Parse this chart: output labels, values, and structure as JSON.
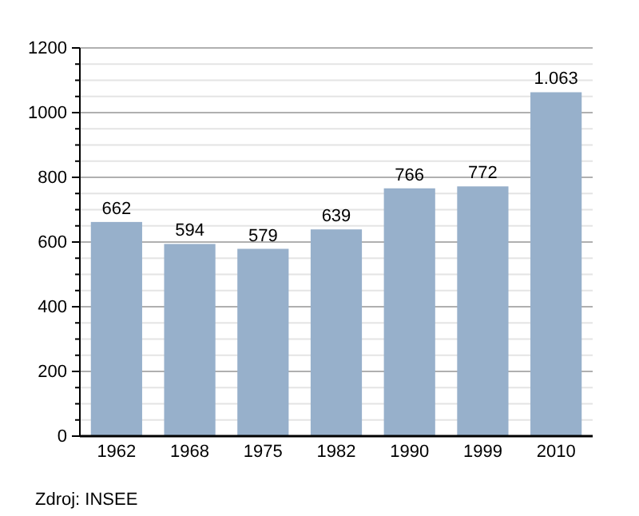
{
  "chart_data": {
    "type": "bar",
    "categories": [
      "1962",
      "1968",
      "1975",
      "1982",
      "1990",
      "1999",
      "2010"
    ],
    "values": [
      662,
      594,
      579,
      639,
      766,
      772,
      1063
    ],
    "value_labels": [
      "662",
      "594",
      "579",
      "639",
      "766",
      "772",
      "1.063"
    ],
    "color": "#97b0cb",
    "ylim": [
      0,
      1200
    ],
    "yticks": [
      0,
      {
        "value": 50,
        "label": null
      },
      {
        "value": 100,
        "label": null
      },
      {
        "value": 150,
        "label": null
      },
      200,
      {
        "value": 250,
        "label": null
      },
      {
        "value": 300,
        "label": null
      },
      {
        "value": 350,
        "label": null
      },
      400,
      {
        "value": 450,
        "label": null
      },
      {
        "value": 500,
        "label": null
      },
      {
        "value": 550,
        "label": null
      },
      600,
      {
        "value": 650,
        "label": null
      },
      {
        "value": 700,
        "label": null
      },
      {
        "value": 750,
        "label": null
      },
      800,
      {
        "value": 850,
        "label": null
      },
      {
        "value": 900,
        "label": null
      },
      {
        "value": 950,
        "label": null
      },
      1000,
      {
        "value": 1050,
        "label": null
      },
      {
        "value": 1100,
        "label": null
      },
      {
        "value": 1150,
        "label": null
      },
      1200
    ],
    "grid": true,
    "annotations": [
      "Zdroj: INSEE"
    ]
  }
}
